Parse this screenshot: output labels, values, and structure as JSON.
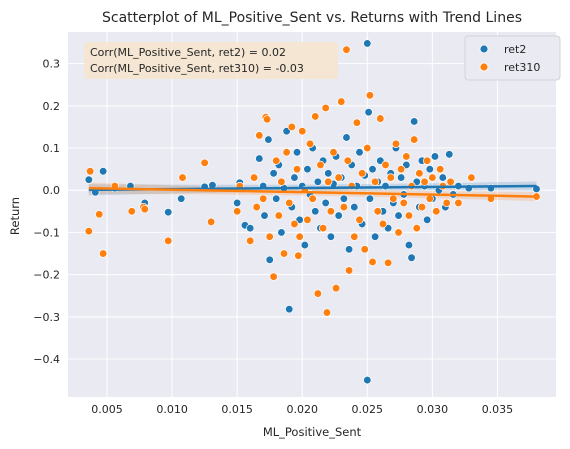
{
  "chart_data": {
    "type": "scatter",
    "title": "Scatterplot of ML_Positive_Sent vs. Returns with Trend Lines",
    "xlabel": "ML_Positive_Sent",
    "ylabel": "Return",
    "xlim": [
      0.002,
      0.0395
    ],
    "ylim": [
      -0.49,
      0.375
    ],
    "x_ticks": [
      0.005,
      0.01,
      0.015,
      0.02,
      0.025,
      0.03,
      0.035
    ],
    "x_tick_labels": [
      "0.005",
      "0.010",
      "0.015",
      "0.020",
      "0.025",
      "0.030",
      "0.035"
    ],
    "y_ticks": [
      -0.4,
      -0.3,
      -0.2,
      -0.1,
      0.0,
      0.1,
      0.2,
      0.3
    ],
    "y_tick_labels": [
      "−0.4",
      "−0.3",
      "−0.2",
      "−0.1",
      "0.0",
      "0.1",
      "0.2",
      "0.3"
    ],
    "grid": true,
    "legend_position": "top-right",
    "annotation": [
      "Corr(ML_Positive_Sent, ret2) = 0.02",
      "Corr(ML_Positive_Sent, ret310) = -0.03"
    ],
    "series": [
      {
        "name": "ret2",
        "color": "#1f77b4",
        "trend": {
          "x": [
            0.0036,
            0.038
          ],
          "y": [
            0.001,
            0.01
          ]
        },
        "points": [
          [
            0.0036,
            0.025
          ],
          [
            0.0041,
            -0.005
          ],
          [
            0.0047,
            0.045
          ],
          [
            0.0056,
            0.005
          ],
          [
            0.0068,
            0.01
          ],
          [
            0.0079,
            -0.03
          ],
          [
            0.0097,
            -0.052
          ],
          [
            0.0107,
            -0.02
          ],
          [
            0.0125,
            0.008
          ],
          [
            0.0131,
            0.012
          ],
          [
            0.015,
            -0.03
          ],
          [
            0.0152,
            0.018
          ],
          [
            0.0156,
            -0.083
          ],
          [
            0.016,
            -0.09
          ],
          [
            0.0163,
            0.03
          ],
          [
            0.0167,
            0.075
          ],
          [
            0.017,
            0.01
          ],
          [
            0.0171,
            -0.06
          ],
          [
            0.0174,
            0.12
          ],
          [
            0.0175,
            -0.165
          ],
          [
            0.0178,
            0.04
          ],
          [
            0.018,
            -0.02
          ],
          [
            0.0182,
            0.06
          ],
          [
            0.0184,
            -0.1
          ],
          [
            0.0186,
            0.005
          ],
          [
            0.0188,
            0.14
          ],
          [
            0.019,
            -0.282
          ],
          [
            0.0192,
            -0.04
          ],
          [
            0.0194,
            0.03
          ],
          [
            0.0196,
            0.09
          ],
          [
            0.0198,
            -0.07
          ],
          [
            0.02,
            0.01
          ],
          [
            0.0202,
            -0.13
          ],
          [
            0.0204,
            0.05
          ],
          [
            0.0206,
            -0.01
          ],
          [
            0.0208,
            0.1
          ],
          [
            0.021,
            -0.05
          ],
          [
            0.0212,
            0.02
          ],
          [
            0.0214,
            -0.09
          ],
          [
            0.0216,
            0.07
          ],
          [
            0.0218,
            -0.03
          ],
          [
            0.022,
            0.04
          ],
          [
            0.0222,
            -0.11
          ],
          [
            0.0224,
            0.015
          ],
          [
            0.0226,
            0.08
          ],
          [
            0.0228,
            -0.06
          ],
          [
            0.023,
            0.03
          ],
          [
            0.0232,
            -0.02
          ],
          [
            0.0234,
            0.125
          ],
          [
            0.0236,
            -0.14
          ],
          [
            0.0238,
            0.06
          ],
          [
            0.024,
            -0.04
          ],
          [
            0.0242,
            0.01
          ],
          [
            0.0244,
            0.09
          ],
          [
            0.0246,
            -0.08
          ],
          [
            0.0248,
            0.035
          ],
          [
            0.025,
            0.348
          ],
          [
            0.025,
            -0.45
          ],
          [
            0.0251,
            0.185
          ],
          [
            0.0252,
            -0.02
          ],
          [
            0.0254,
            0.05
          ],
          [
            0.0256,
            -0.11
          ],
          [
            0.0258,
            0.02
          ],
          [
            0.026,
            0.07
          ],
          [
            0.0262,
            -0.05
          ],
          [
            0.0264,
            0.01
          ],
          [
            0.0266,
            -0.09
          ],
          [
            0.0268,
            0.04
          ],
          [
            0.027,
            -0.03
          ],
          [
            0.0272,
            0.1
          ],
          [
            0.0274,
            -0.06
          ],
          [
            0.0276,
            0.03
          ],
          [
            0.0278,
            -0.01
          ],
          [
            0.028,
            0.06
          ],
          [
            0.0282,
            -0.13
          ],
          [
            0.0284,
            -0.16
          ],
          [
            0.0286,
            0.163
          ],
          [
            0.0288,
            0.02
          ],
          [
            0.029,
            -0.04
          ],
          [
            0.0292,
            0.07
          ],
          [
            0.0294,
            0.01
          ],
          [
            0.0296,
            -0.07
          ],
          [
            0.0298,
            0.05
          ],
          [
            0.03,
            -0.02
          ],
          [
            0.0302,
            0.08
          ],
          [
            0.0305,
            0.0
          ],
          [
            0.0308,
            0.03
          ],
          [
            0.031,
            -0.04
          ],
          [
            0.0313,
            0.085
          ],
          [
            0.0316,
            -0.01
          ],
          [
            0.032,
            0.01
          ],
          [
            0.0328,
            0.005
          ],
          [
            0.0345,
            0.005
          ],
          [
            0.038,
            0.003
          ]
        ]
      },
      {
        "name": "ret310",
        "color": "#ff7f0e",
        "trend": {
          "x": [
            0.0036,
            0.038
          ],
          "y": [
            0.005,
            -0.015
          ]
        },
        "points": [
          [
            0.0036,
            -0.097
          ],
          [
            0.0037,
            0.045
          ],
          [
            0.0044,
            -0.057
          ],
          [
            0.0047,
            -0.15
          ],
          [
            0.0056,
            0.01
          ],
          [
            0.0069,
            -0.05
          ],
          [
            0.0078,
            -0.04
          ],
          [
            0.0079,
            -0.045
          ],
          [
            0.0097,
            -0.12
          ],
          [
            0.0108,
            0.03
          ],
          [
            0.0125,
            0.065
          ],
          [
            0.013,
            -0.075
          ],
          [
            0.015,
            -0.05
          ],
          [
            0.0152,
            0.01
          ],
          [
            0.016,
            -0.12
          ],
          [
            0.0163,
            0.03
          ],
          [
            0.0165,
            -0.04
          ],
          [
            0.0167,
            0.13
          ],
          [
            0.017,
            -0.02
          ],
          [
            0.0172,
            0.173
          ],
          [
            0.0173,
            0.168
          ],
          [
            0.0175,
            -0.11
          ],
          [
            0.0178,
            -0.205
          ],
          [
            0.018,
            0.07
          ],
          [
            0.0182,
            -0.06
          ],
          [
            0.0184,
            0.02
          ],
          [
            0.0186,
            -0.15
          ],
          [
            0.0188,
            0.09
          ],
          [
            0.019,
            -0.03
          ],
          [
            0.0192,
            0.15
          ],
          [
            0.0194,
            -0.08
          ],
          [
            0.0196,
            0.05
          ],
          [
            0.0197,
            -0.155
          ],
          [
            0.0198,
            -0.11
          ],
          [
            0.02,
            0.14
          ],
          [
            0.0202,
            0.0
          ],
          [
            0.0204,
            -0.07
          ],
          [
            0.0206,
            0.11
          ],
          [
            0.0208,
            -0.02
          ],
          [
            0.021,
            0.175
          ],
          [
            0.0212,
            -0.245
          ],
          [
            0.0214,
            0.06
          ],
          [
            0.0216,
            -0.09
          ],
          [
            0.0218,
            0.195
          ],
          [
            0.0219,
            -0.29
          ],
          [
            0.022,
            0.02
          ],
          [
            0.0222,
            -0.05
          ],
          [
            0.0224,
            0.09
          ],
          [
            0.0226,
            -0.232
          ],
          [
            0.0228,
            0.03
          ],
          [
            0.023,
            0.21
          ],
          [
            0.0232,
            -0.04
          ],
          [
            0.0234,
            0.333
          ],
          [
            0.0235,
            0.07
          ],
          [
            0.0236,
            -0.19
          ],
          [
            0.0238,
            0.01
          ],
          [
            0.024,
            -0.11
          ],
          [
            0.0242,
            0.16
          ],
          [
            0.0244,
            -0.07
          ],
          [
            0.0246,
            0.04
          ],
          [
            0.0248,
            -0.14
          ],
          [
            0.025,
            0.1
          ],
          [
            0.0252,
            0.225
          ],
          [
            0.0254,
            -0.17
          ],
          [
            0.0256,
            0.02
          ],
          [
            0.0258,
            -0.05
          ],
          [
            0.026,
            0.17
          ],
          [
            0.0262,
            -0.08
          ],
          [
            0.0264,
            0.06
          ],
          [
            0.0266,
            -0.172
          ],
          [
            0.0268,
            0.03
          ],
          [
            0.027,
            -0.02
          ],
          [
            0.0272,
            0.11
          ],
          [
            0.0274,
            -0.1
          ],
          [
            0.0276,
            0.05
          ],
          [
            0.0278,
            -0.03
          ],
          [
            0.028,
            0.08
          ],
          [
            0.0282,
            -0.06
          ],
          [
            0.0284,
            0.01
          ],
          [
            0.0286,
            0.12
          ],
          [
            0.0288,
            -0.09
          ],
          [
            0.029,
            0.04
          ],
          [
            0.0292,
            -0.04
          ],
          [
            0.0294,
            0.02
          ],
          [
            0.0296,
            0.07
          ],
          [
            0.0298,
            -0.02
          ],
          [
            0.03,
            0.03
          ],
          [
            0.0303,
            -0.05
          ],
          [
            0.0306,
            0.05
          ],
          [
            0.0308,
            0.01
          ],
          [
            0.0311,
            -0.03
          ],
          [
            0.0314,
            0.02
          ],
          [
            0.032,
            -0.03
          ],
          [
            0.033,
            0.03
          ],
          [
            0.0345,
            -0.02
          ],
          [
            0.038,
            -0.015
          ]
        ]
      }
    ]
  }
}
